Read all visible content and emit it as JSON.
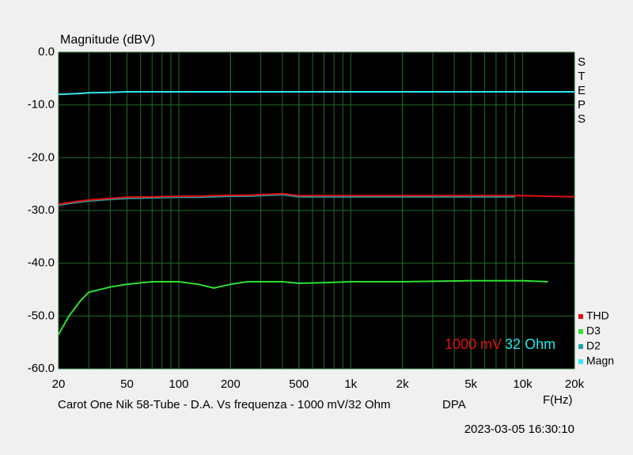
{
  "chart_data": {
    "type": "line",
    "y_label": "Magnitude (dBV)",
    "x_label": "F(Hz)",
    "side_label": "STEPS",
    "title": "Carot One Nik 58-Tube - D.A. Vs frequenza - 1000 mV/32 Ohm",
    "source": "DPA",
    "timestamp": "2023-03-05 16:30:10",
    "annotations": [
      {
        "text": "1000 mV",
        "color": "#e01010"
      },
      {
        "text": "32 Ohm",
        "color": "#20e8e8"
      }
    ],
    "log_x": true,
    "grid": true,
    "grid_color": "#1f6b2a",
    "background": "#000000",
    "legend": "lower right",
    "xlim": [
      20,
      20000
    ],
    "xticks": [
      20,
      50,
      100,
      200,
      500,
      {
        "value": 1000,
        "label": "1k"
      },
      {
        "value": 2000,
        "label": "2k"
      },
      {
        "value": 5000,
        "label": "5k"
      },
      {
        "value": 10000,
        "label": "10k"
      },
      {
        "value": 20000,
        "label": "20k"
      }
    ],
    "ylim": [
      -60,
      0
    ],
    "yticks": [
      {
        "value": -60,
        "label": "-60.0"
      },
      {
        "value": -50,
        "label": "-50.0"
      },
      {
        "value": -40,
        "label": "-40.0"
      },
      {
        "value": -30,
        "label": "-30.0"
      },
      {
        "value": -20,
        "label": "-20.0"
      },
      {
        "value": -10,
        "label": "-10.0"
      },
      {
        "value": 0,
        "label": "0.0"
      }
    ],
    "x": [
      20,
      23,
      27,
      30,
      40,
      50,
      70,
      100,
      130,
      160,
      200,
      250,
      300,
      400,
      500,
      700,
      1000,
      2000,
      5000,
      9000,
      10000,
      14000,
      20000
    ],
    "series": [
      {
        "name": "THD",
        "color": "#e01010",
        "values": [
          -28.8,
          -28.5,
          -28.2,
          -28,
          -27.7,
          -27.5,
          -27.4,
          -27.3,
          -27.3,
          -27.2,
          -27.1,
          -27.1,
          -27,
          -26.8,
          -27.2,
          -27.2,
          -27.2,
          -27.2,
          -27.2,
          -27.2,
          -27.2,
          -27.3,
          -27.4
        ]
      },
      {
        "name": "D3",
        "color": "#30e030",
        "values": [
          -53.5,
          -50,
          -47,
          -45.5,
          -44.5,
          -44,
          -43.5,
          -43.5,
          -44,
          -44.7,
          -44,
          -43.5,
          -43.5,
          -43.5,
          -43.8,
          -43.7,
          -43.5,
          -43.5,
          -43.3,
          -43.3,
          -43.3,
          -43.5,
          null
        ]
      },
      {
        "name": "D2",
        "color": "#20a0a8",
        "values": [
          -29,
          -28.7,
          -28.4,
          -28.2,
          -27.9,
          -27.7,
          -27.6,
          -27.5,
          -27.5,
          -27.4,
          -27.3,
          -27.3,
          -27.2,
          -27,
          -27.4,
          -27.4,
          -27.4,
          -27.4,
          -27.4,
          -27.4,
          null,
          null,
          null
        ]
      },
      {
        "name": "Magn",
        "color": "#30e8f0",
        "values": [
          -8,
          -7.9,
          -7.8,
          -7.7,
          -7.6,
          -7.5,
          -7.5,
          -7.5,
          -7.5,
          -7.5,
          -7.5,
          -7.5,
          -7.5,
          -7.5,
          -7.5,
          -7.5,
          -7.5,
          -7.5,
          -7.5,
          -7.5,
          -7.5,
          -7.5,
          -7.5
        ]
      }
    ]
  }
}
